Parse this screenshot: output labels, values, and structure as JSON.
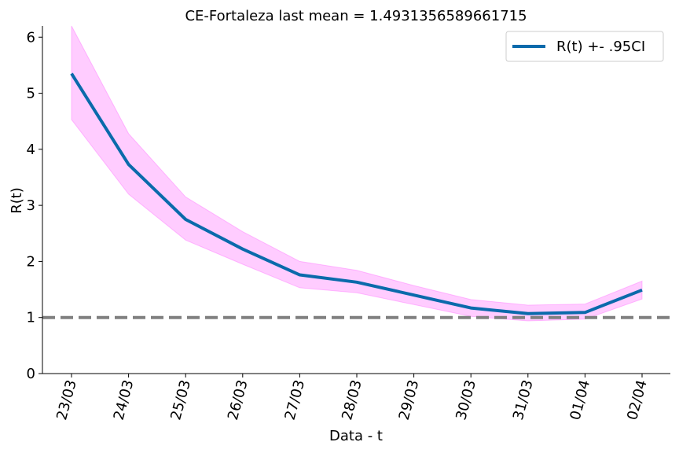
{
  "chart_data": {
    "type": "line",
    "title": "CE-Fortaleza last mean = 1.4931356589661715",
    "xlabel": "Data - t",
    "ylabel": "R(t)",
    "categories": [
      "23/03",
      "24/03",
      "25/03",
      "26/03",
      "27/03",
      "28/03",
      "29/03",
      "30/03",
      "31/03",
      "01/04",
      "02/04"
    ],
    "ylim": [
      0,
      6.2
    ],
    "yticks": [
      0,
      1,
      2,
      3,
      4,
      5,
      6
    ],
    "series": [
      {
        "name": "R(t) +- .95CI",
        "color": "#0a6aab",
        "values": [
          5.35,
          3.73,
          2.75,
          2.22,
          1.76,
          1.63,
          1.4,
          1.17,
          1.07,
          1.09,
          1.49
        ],
        "lower": [
          4.53,
          3.2,
          2.38,
          1.95,
          1.53,
          1.44,
          1.23,
          1.02,
          0.94,
          0.97,
          1.33
        ],
        "upper": [
          6.2,
          4.28,
          3.15,
          2.53,
          2.0,
          1.84,
          1.57,
          1.32,
          1.22,
          1.24,
          1.65
        ]
      }
    ],
    "band_color": "#ff55ff",
    "reference_line": {
      "y": 1,
      "color": "#808080",
      "style": "dashed"
    },
    "legend": {
      "position": "top-right"
    },
    "grid": false
  }
}
